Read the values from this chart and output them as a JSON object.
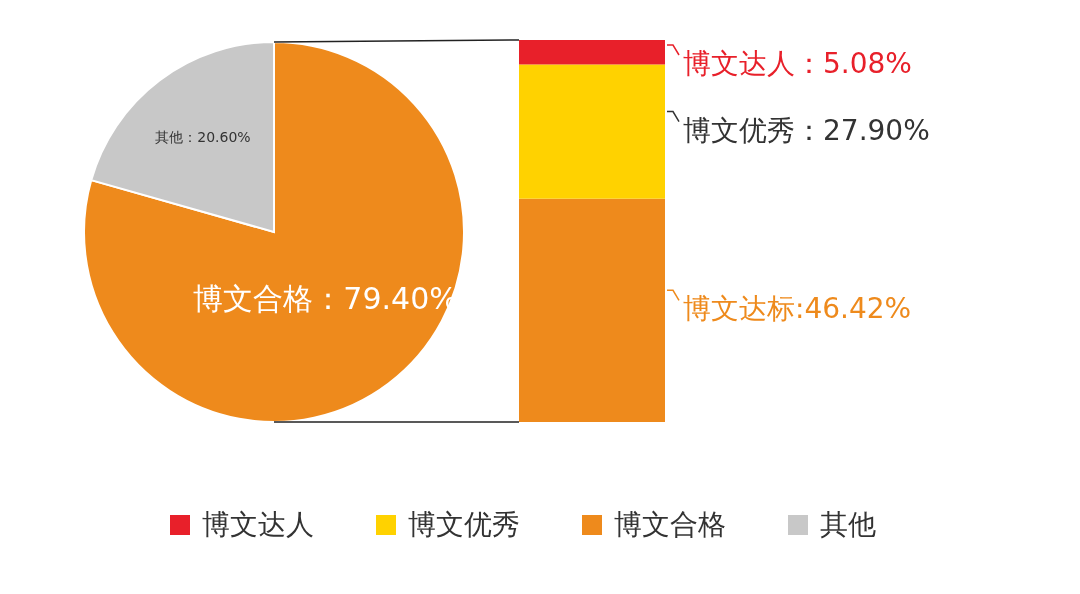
{
  "chart_data": [
    {
      "type": "pie",
      "categories": [
        "博文合格",
        "其他"
      ],
      "values": [
        79.4,
        20.6
      ],
      "colors": [
        "#ee8a1c",
        "#c8c8c8"
      ],
      "value_labels": [
        "博文合格：79.40%",
        "其他：20.60%"
      ],
      "legend": "bottom"
    },
    {
      "type": "bar",
      "stacked": true,
      "categories": [
        null
      ],
      "legend": "bottom",
      "series": [
        {
          "color": "#ee8a1c",
          "values": [
            46.42
          ],
          "value_labels": [
            "博文达标:46.42%"
          ]
        },
        {
          "name": "博文优秀",
          "color": "#ffd200",
          "values": [
            27.9
          ],
          "value_labels": [
            "博文优秀：27.90%"
          ]
        },
        {
          "name": "博文达人",
          "color": "#e8202a",
          "values": [
            5.08
          ],
          "value_labels": [
            "博文达人：5.08%"
          ]
        }
      ]
    }
  ]
}
